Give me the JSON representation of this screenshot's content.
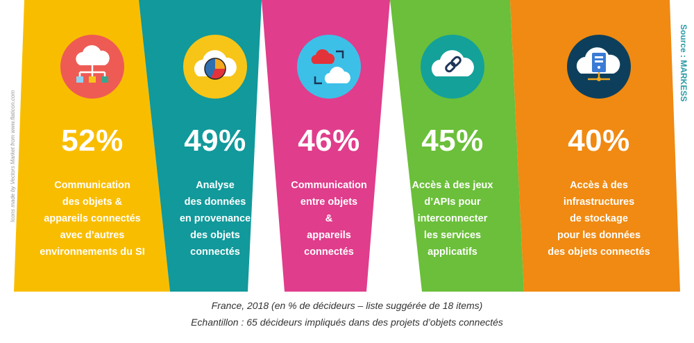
{
  "chart_data": {
    "type": "bar",
    "categories": [
      "Communication des objets & appareils connectés avec d’autres environnements du SI",
      "Analyse des données en provenance des objets connectés",
      "Communication entre objets & appareils connectés",
      "Accès à des jeux d’APIs pour interconnecter les services applicatifs",
      "Accès à des infrastructures de stockage pour les données des objets connectés"
    ],
    "values": [
      52,
      49,
      46,
      45,
      40
    ],
    "value_labels": [
      "52%",
      "49%",
      "46%",
      "45%",
      "40%"
    ]
  },
  "items": [
    {
      "percent": "52%",
      "label": "Communication\ndes objets &\nappareils connectés\navec d’autres\nenvironnements du SI",
      "color": "#f9bd00",
      "circle_color": "#ee5b55",
      "icon": "cloud-network-icon"
    },
    {
      "percent": "49%",
      "label": "Analyse\ndes données\nen provenance\ndes objets\nconnectés",
      "color": "#11999b",
      "circle_color": "#f7c518",
      "icon": "cloud-pie-chart-icon"
    },
    {
      "percent": "46%",
      "label": "Communication\nentre objets\n&\nappareils\nconnectés",
      "color": "#e03d8c",
      "circle_color": "#3cc0e8",
      "icon": "cloud-sync-icon"
    },
    {
      "percent": "45%",
      "label": "Accès à des jeux\nd’APIs pour\ninterconnecter\nles services\napplicatifs",
      "color": "#6bbf3a",
      "circle_color": "#13a19a",
      "icon": "cloud-link-icon"
    },
    {
      "percent": "40%",
      "label": "Accès à des\ninfrastructures\nde stockage\npour les données\ndes objets connectés",
      "color": "#f08a12",
      "circle_color": "#0d3f5c",
      "icon": "cloud-server-icon"
    }
  ],
  "credit": "Icons made by Vectors Market from www.flaticon.com",
  "source": "Source : MARKESS",
  "footnote_line1": "France, 2018 (en % de décideurs – liste suggérée de 18 items)",
  "footnote_line2": "Echantillon : 65 décideurs impliqués dans des projets d’objets connectés"
}
